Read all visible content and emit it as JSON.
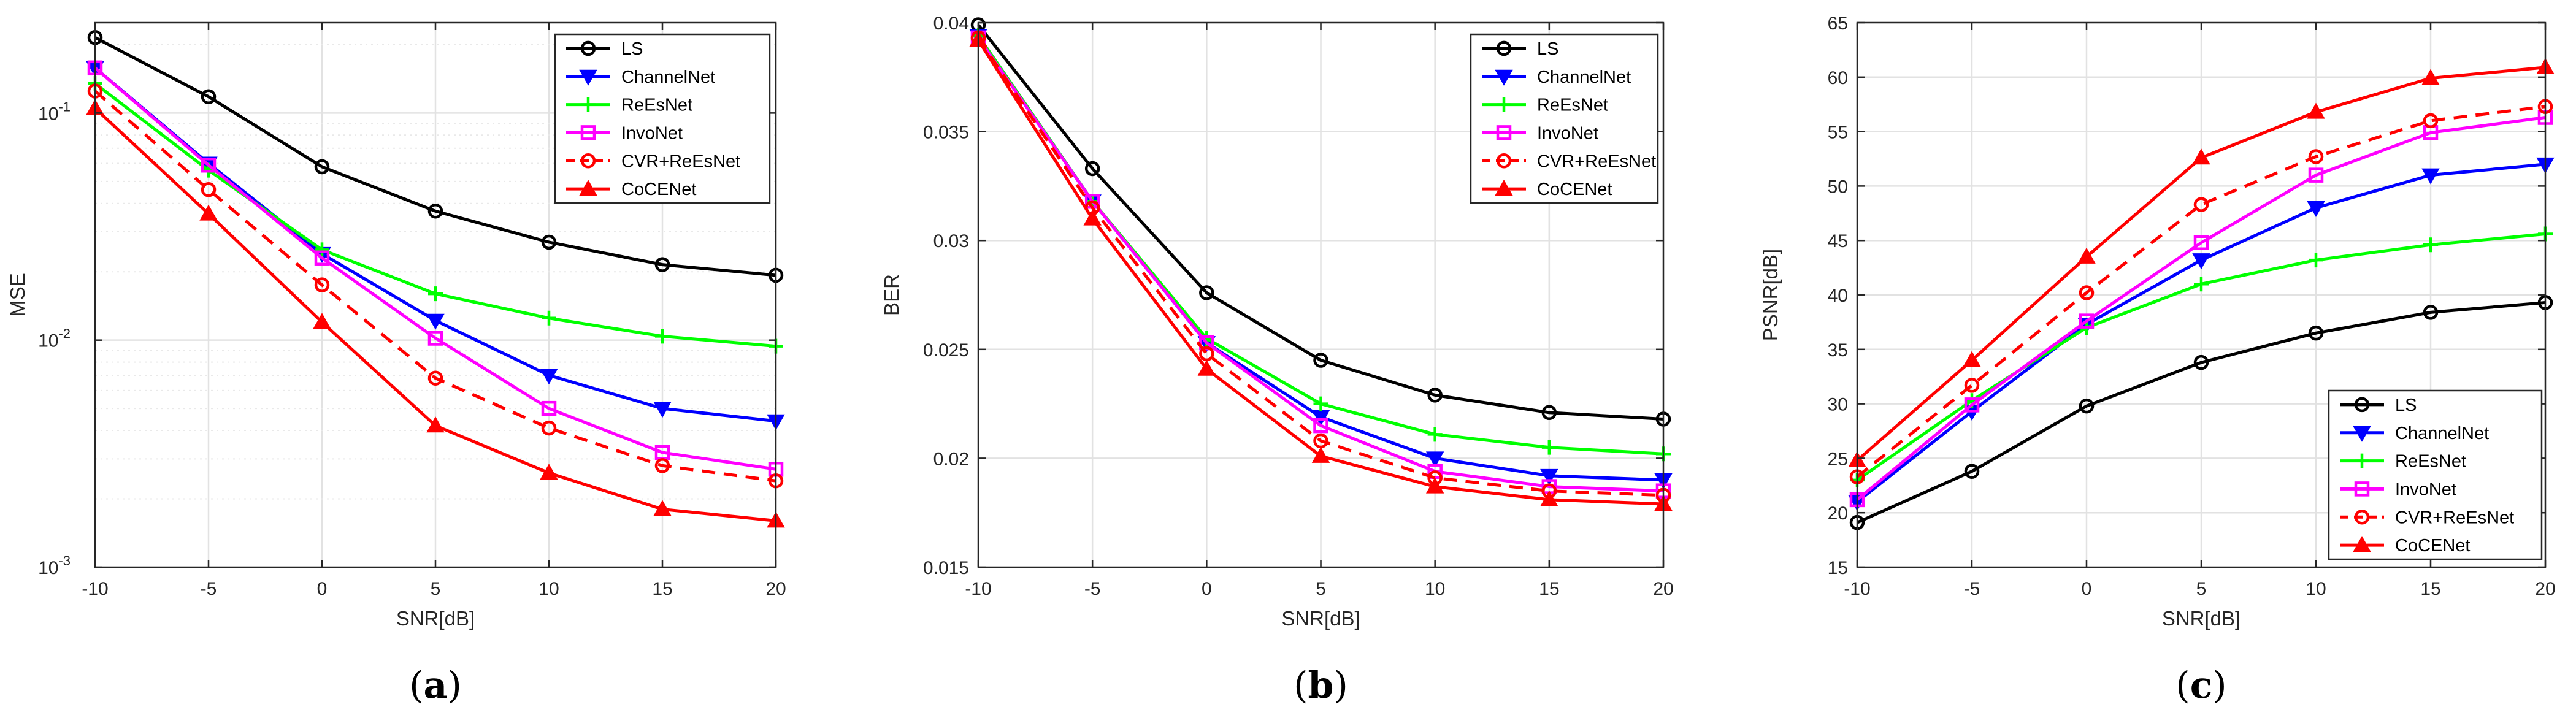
{
  "chart_data": [
    {
      "id": "a",
      "type": "line",
      "caption": "(a)",
      "caption_letter": "a",
      "title": "",
      "xlabel": "SNR[dB]",
      "ylabel": "MSE",
      "yscale": "log",
      "xlim": [
        -10,
        20
      ],
      "ylim": [
        0.001,
        0.25
      ],
      "x": [
        -10,
        -5,
        0,
        5,
        10,
        15,
        20
      ],
      "xticks": [
        -10,
        -5,
        0,
        5,
        10,
        15,
        20
      ],
      "xtick_labels": [
        "-10",
        "-5",
        "0",
        "5",
        "10",
        "15",
        "20"
      ],
      "yticks": [
        0.001,
        0.01,
        0.1
      ],
      "ytick_base": [
        "10",
        "10",
        "10"
      ],
      "ytick_exp": [
        "-3",
        "-2",
        "-1"
      ],
      "grid": true,
      "legend_position": "top-right",
      "series": [
        {
          "name": "LS",
          "color": "#000000",
          "marker": "circle",
          "dash": false,
          "values": [
            0.215,
            0.118,
            0.058,
            0.037,
            0.027,
            0.0215,
            0.0193
          ]
        },
        {
          "name": "ChannelNet",
          "color": "#0000ff",
          "marker": "triangle-down",
          "dash": false,
          "values": [
            0.158,
            0.06,
            0.024,
            0.0122,
            0.007,
            0.005,
            0.0044
          ]
        },
        {
          "name": "ReEsNet",
          "color": "#00ff00",
          "marker": "plus",
          "dash": false,
          "values": [
            0.135,
            0.056,
            0.025,
            0.016,
            0.0125,
            0.0104,
            0.0094
          ]
        },
        {
          "name": "InvoNet",
          "color": "#ff00ff",
          "marker": "square",
          "dash": false,
          "values": [
            0.158,
            0.059,
            0.023,
            0.0102,
            0.005,
            0.0032,
            0.0027
          ]
        },
        {
          "name": "CVR+ReEsNet",
          "color": "#ff0000",
          "marker": "circle",
          "dash": true,
          "values": [
            0.125,
            0.046,
            0.0175,
            0.0068,
            0.0041,
            0.0028,
            0.0024
          ]
        },
        {
          "name": "CoCENet",
          "color": "#ff0000",
          "marker": "triangle-up",
          "dash": false,
          "values": [
            0.105,
            0.036,
            0.012,
            0.0042,
            0.0026,
            0.0018,
            0.0016
          ]
        }
      ]
    },
    {
      "id": "b",
      "type": "line",
      "caption": "(b)",
      "caption_letter": "b",
      "title": "",
      "xlabel": "SNR[dB]",
      "ylabel": "BER",
      "yscale": "linear",
      "xlim": [
        -10,
        20
      ],
      "ylim": [
        0.015,
        0.04
      ],
      "x": [
        -10,
        -5,
        0,
        5,
        10,
        15,
        20
      ],
      "xticks": [
        -10,
        -5,
        0,
        5,
        10,
        15,
        20
      ],
      "xtick_labels": [
        "-10",
        "-5",
        "0",
        "5",
        "10",
        "15",
        "20"
      ],
      "yticks": [
        0.015,
        0.02,
        0.025,
        0.03,
        0.035,
        0.04
      ],
      "ytick_labels": [
        "0.015",
        "0.02",
        "0.025",
        "0.03",
        "0.035",
        "0.04"
      ],
      "grid": true,
      "legend_position": "top-right",
      "series": [
        {
          "name": "LS",
          "color": "#000000",
          "marker": "circle",
          "dash": false,
          "values": [
            0.0399,
            0.0333,
            0.0276,
            0.0245,
            0.0229,
            0.0221,
            0.0218
          ]
        },
        {
          "name": "ChannelNet",
          "color": "#0000ff",
          "marker": "triangle-down",
          "dash": false,
          "values": [
            0.0394,
            0.0318,
            0.0253,
            0.0219,
            0.02,
            0.0192,
            0.019
          ]
        },
        {
          "name": "ReEsNet",
          "color": "#00ff00",
          "marker": "plus",
          "dash": false,
          "values": [
            0.0394,
            0.0318,
            0.0255,
            0.0225,
            0.0211,
            0.0205,
            0.0202
          ]
        },
        {
          "name": "InvoNet",
          "color": "#ff00ff",
          "marker": "square",
          "dash": false,
          "values": [
            0.0393,
            0.0318,
            0.0253,
            0.0215,
            0.0194,
            0.0187,
            0.0185
          ]
        },
        {
          "name": "CVR+ReEsNet",
          "color": "#ff0000",
          "marker": "circle",
          "dash": true,
          "values": [
            0.0393,
            0.0315,
            0.0248,
            0.0208,
            0.0191,
            0.0185,
            0.0183
          ]
        },
        {
          "name": "CoCENet",
          "color": "#ff0000",
          "marker": "triangle-up",
          "dash": false,
          "values": [
            0.0392,
            0.031,
            0.0241,
            0.0201,
            0.0187,
            0.0181,
            0.0179
          ]
        }
      ]
    },
    {
      "id": "c",
      "type": "line",
      "caption": "(c)",
      "caption_letter": "c",
      "title": "",
      "xlabel": "SNR[dB]",
      "ylabel": "PSNR[dB]",
      "yscale": "linear",
      "xlim": [
        -10,
        20
      ],
      "ylim": [
        15,
        65
      ],
      "x": [
        -10,
        -5,
        0,
        5,
        10,
        15,
        20
      ],
      "xticks": [
        -10,
        -5,
        0,
        5,
        10,
        15,
        20
      ],
      "xtick_labels": [
        "-10",
        "-5",
        "0",
        "5",
        "10",
        "15",
        "20"
      ],
      "yticks": [
        15,
        20,
        25,
        30,
        35,
        40,
        45,
        50,
        55,
        60,
        65
      ],
      "ytick_labels": [
        "15",
        "20",
        "25",
        "30",
        "35",
        "40",
        "45",
        "50",
        "55",
        "60",
        "65"
      ],
      "grid": true,
      "legend_position": "bottom-right",
      "series": [
        {
          "name": "LS",
          "color": "#000000",
          "marker": "circle",
          "dash": false,
          "values": [
            19.1,
            23.8,
            29.8,
            33.8,
            36.5,
            38.4,
            39.3
          ]
        },
        {
          "name": "ChannelNet",
          "color": "#0000ff",
          "marker": "triangle-down",
          "dash": false,
          "values": [
            21.0,
            29.3,
            37.3,
            43.2,
            48.0,
            51.0,
            52.0
          ]
        },
        {
          "name": "ReEsNet",
          "color": "#00ff00",
          "marker": "plus",
          "dash": false,
          "values": [
            23.0,
            30.3,
            37.0,
            41.0,
            43.2,
            44.6,
            45.6
          ]
        },
        {
          "name": "InvoNet",
          "color": "#ff00ff",
          "marker": "square",
          "dash": false,
          "values": [
            21.2,
            29.9,
            37.6,
            44.8,
            51.0,
            54.9,
            56.3
          ]
        },
        {
          "name": "CVR+ReEsNet",
          "color": "#ff0000",
          "marker": "circle",
          "dash": true,
          "values": [
            23.3,
            31.7,
            40.2,
            48.3,
            52.7,
            56.0,
            57.3
          ]
        },
        {
          "name": "CoCENet",
          "color": "#ff0000",
          "marker": "triangle-up",
          "dash": false,
          "values": [
            24.8,
            34.0,
            43.5,
            52.6,
            56.8,
            59.9,
            60.9
          ]
        }
      ]
    }
  ]
}
